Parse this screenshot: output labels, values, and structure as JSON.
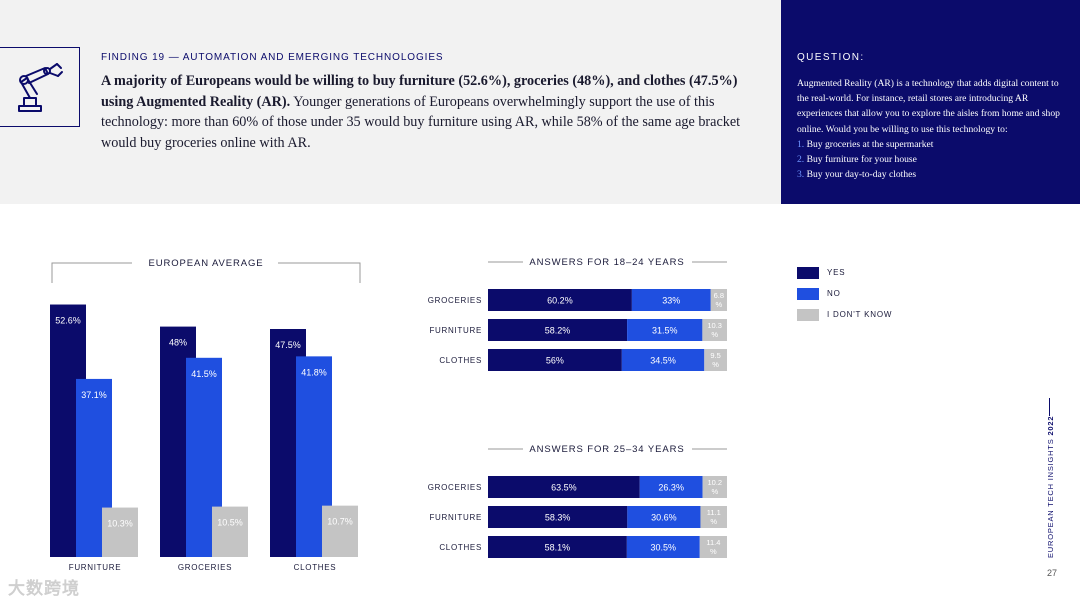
{
  "header": {
    "finding_label": "FINDING 19 — AUTOMATION AND EMERGING TECHNOLOGIES",
    "headline_bold": "A majority of Europeans would be willing to buy furniture (52.6%), groceries (48%), and clothes (47.5%) using Augmented Reality (AR).",
    "headline_rest": " Younger generations of Europeans overwhelmingly support the use of this technology: more than 60% of those under 35 would buy furniture using AR, while 58% of the same age bracket would buy groceries online with AR."
  },
  "question": {
    "title": "QUESTION:",
    "body": "Augmented Reality (AR) is a technology that adds digital content to the real-world. For instance, retail stores are introducing AR experiences that allow you to explore the aisles from home and shop online. Would you be willing to use this technology to:",
    "items": [
      {
        "num": "1.",
        "text": "Buy groceries at the supermarket"
      },
      {
        "num": "2.",
        "text": "Buy furniture for your house"
      },
      {
        "num": "3.",
        "text": "Buy your day-to-day clothes"
      }
    ]
  },
  "legend": [
    {
      "label": "YES",
      "color": "#0b0b6b"
    },
    {
      "label": "NO",
      "color": "#1f4fe0"
    },
    {
      "label": "I DON'T KNOW",
      "color": "#c4c4c4"
    }
  ],
  "side_label": {
    "text": "EUROPEAN TECH INSIGHTS",
    "year": "2022"
  },
  "page_number": "27",
  "watermark": "大数跨境",
  "chart_data": [
    {
      "type": "bar",
      "title": "EUROPEAN AVERAGE",
      "categories": [
        "FURNITURE",
        "GROCERIES",
        "CLOTHES"
      ],
      "series": [
        {
          "name": "YES",
          "values": [
            52.6,
            48,
            47.5
          ],
          "labels": [
            "52.6%",
            "48%",
            "47.5%"
          ]
        },
        {
          "name": "NO",
          "values": [
            37.1,
            41.5,
            41.8
          ],
          "labels": [
            "37.1%",
            "41.5%",
            "41.8%"
          ]
        },
        {
          "name": "I DON'T KNOW",
          "values": [
            10.3,
            10.5,
            10.7
          ],
          "labels": [
            "10.3%",
            "10.5%",
            "10.7%"
          ]
        }
      ],
      "ylim": [
        0,
        60
      ]
    },
    {
      "type": "bar",
      "orientation": "horizontal-stacked",
      "title": "ANSWERS FOR 18–24 YEARS",
      "categories": [
        "GROCERIES",
        "FURNITURE",
        "CLOTHES"
      ],
      "series": [
        {
          "name": "YES",
          "values": [
            60.2,
            58.2,
            56
          ],
          "labels": [
            "60.2%",
            "58.2%",
            "56%"
          ]
        },
        {
          "name": "NO",
          "values": [
            33,
            31.5,
            34.5
          ],
          "labels": [
            "33%",
            "31.5%",
            "34.5%"
          ]
        },
        {
          "name": "I DON'T KNOW",
          "values": [
            6.8,
            10.3,
            9.5
          ],
          "labels": [
            "6.8 %",
            "10.3 %",
            "9.5 %"
          ]
        }
      ]
    },
    {
      "type": "bar",
      "orientation": "horizontal-stacked",
      "title": "ANSWERS FOR 25–34 YEARS",
      "categories": [
        "GROCERIES",
        "FURNITURE",
        "CLOTHES"
      ],
      "series": [
        {
          "name": "YES",
          "values": [
            63.5,
            58.3,
            58.1
          ],
          "labels": [
            "63.5%",
            "58.3%",
            "58.1%"
          ]
        },
        {
          "name": "NO",
          "values": [
            26.3,
            30.6,
            30.5
          ],
          "labels": [
            "26.3%",
            "30.6%",
            "30.5%"
          ]
        },
        {
          "name": "I DON'T KNOW",
          "values": [
            10.2,
            11.1,
            11.4
          ],
          "labels": [
            "10.2 %",
            "11.1 %",
            "11.4 %"
          ]
        }
      ]
    }
  ]
}
